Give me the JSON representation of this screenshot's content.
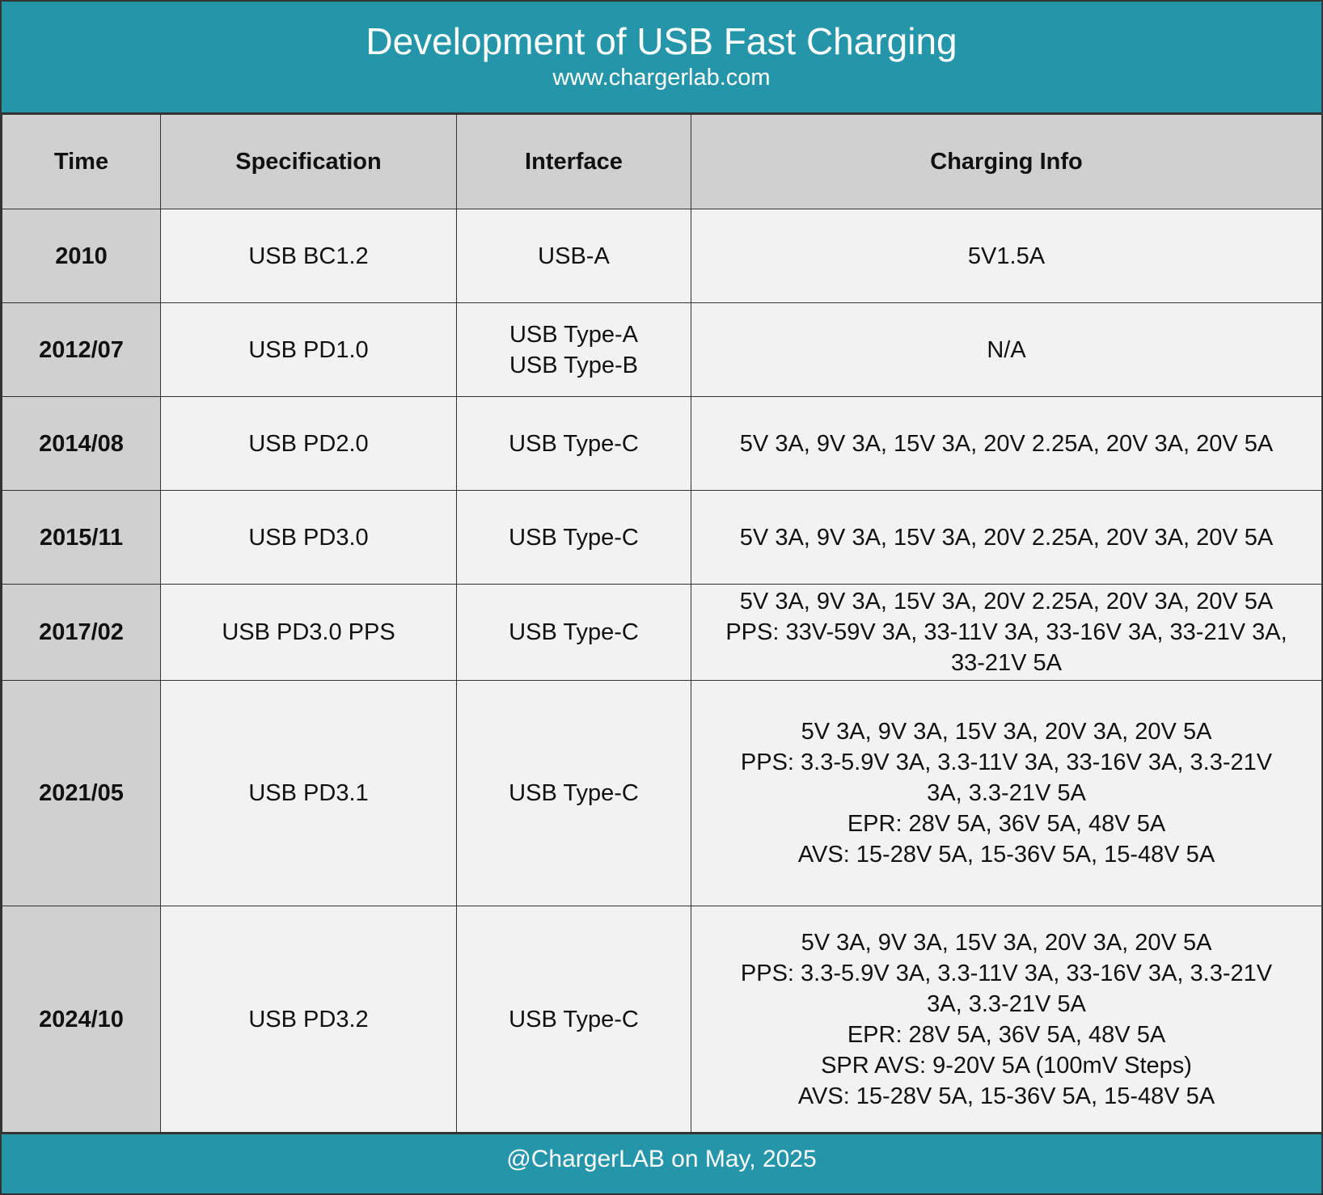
{
  "header": {
    "title": "Development of USB Fast Charging",
    "subtitle": "www.chargerlab.com"
  },
  "table": {
    "columns": [
      "Time",
      "Specification",
      "Interface",
      "Charging Info"
    ],
    "rows": [
      [
        "2010",
        "USB BC1.2",
        [
          "USB-A"
        ],
        [
          "5V1.5A"
        ]
      ],
      [
        "2012/07",
        "USB PD1.0",
        [
          "USB Type-A",
          "USB Type-B"
        ],
        [
          "N/A"
        ]
      ],
      [
        "2014/08",
        "USB PD2.0",
        [
          "USB Type-C"
        ],
        [
          "5V 3A, 9V 3A, 15V 3A, 20V 2.25A, 20V 3A, 20V 5A"
        ]
      ],
      [
        "2015/11",
        "USB PD3.0",
        [
          "USB Type-C"
        ],
        [
          "5V 3A, 9V 3A, 15V 3A, 20V 2.25A, 20V 3A, 20V 5A"
        ]
      ],
      [
        "2017/02",
        "USB PD3.0 PPS",
        [
          "USB Type-C"
        ],
        [
          "5V 3A, 9V 3A, 15V 3A, 20V 2.25A, 20V 3A, 20V 5A",
          "PPS: 33V-59V 3A, 33-11V 3A, 33-16V 3A, 33-21V 3A,",
          "33-21V 5A"
        ]
      ],
      [
        "2021/05",
        "USB PD3.1",
        [
          "USB Type-C"
        ],
        [
          "5V 3A, 9V 3A, 15V 3A, 20V 3A, 20V 5A",
          "PPS: 3.3-5.9V 3A, 3.3-11V 3A, 33-16V 3A, 3.3-21V",
          "3A, 3.3-21V 5A",
          "EPR: 28V 5A, 36V 5A, 48V 5A",
          "AVS: 15-28V 5A, 15-36V 5A, 15-48V 5A"
        ]
      ],
      [
        "2024/10",
        "USB PD3.2",
        [
          "USB Type-C"
        ],
        [
          "5V 3A, 9V 3A, 15V 3A, 20V 3A, 20V 5A",
          "PPS: 3.3-5.9V 3A, 3.3-11V 3A, 33-16V 3A, 3.3-21V",
          "3A, 3.3-21V 5A",
          "EPR: 28V 5A, 36V 5A, 48V 5A",
          "SPR AVS: 9-20V 5A (100mV Steps)",
          "AVS: 15-28V 5A, 15-36V 5A, 15-48V 5A"
        ]
      ]
    ]
  },
  "footer": {
    "text": "@ChargerLAB on May, 2025"
  }
}
